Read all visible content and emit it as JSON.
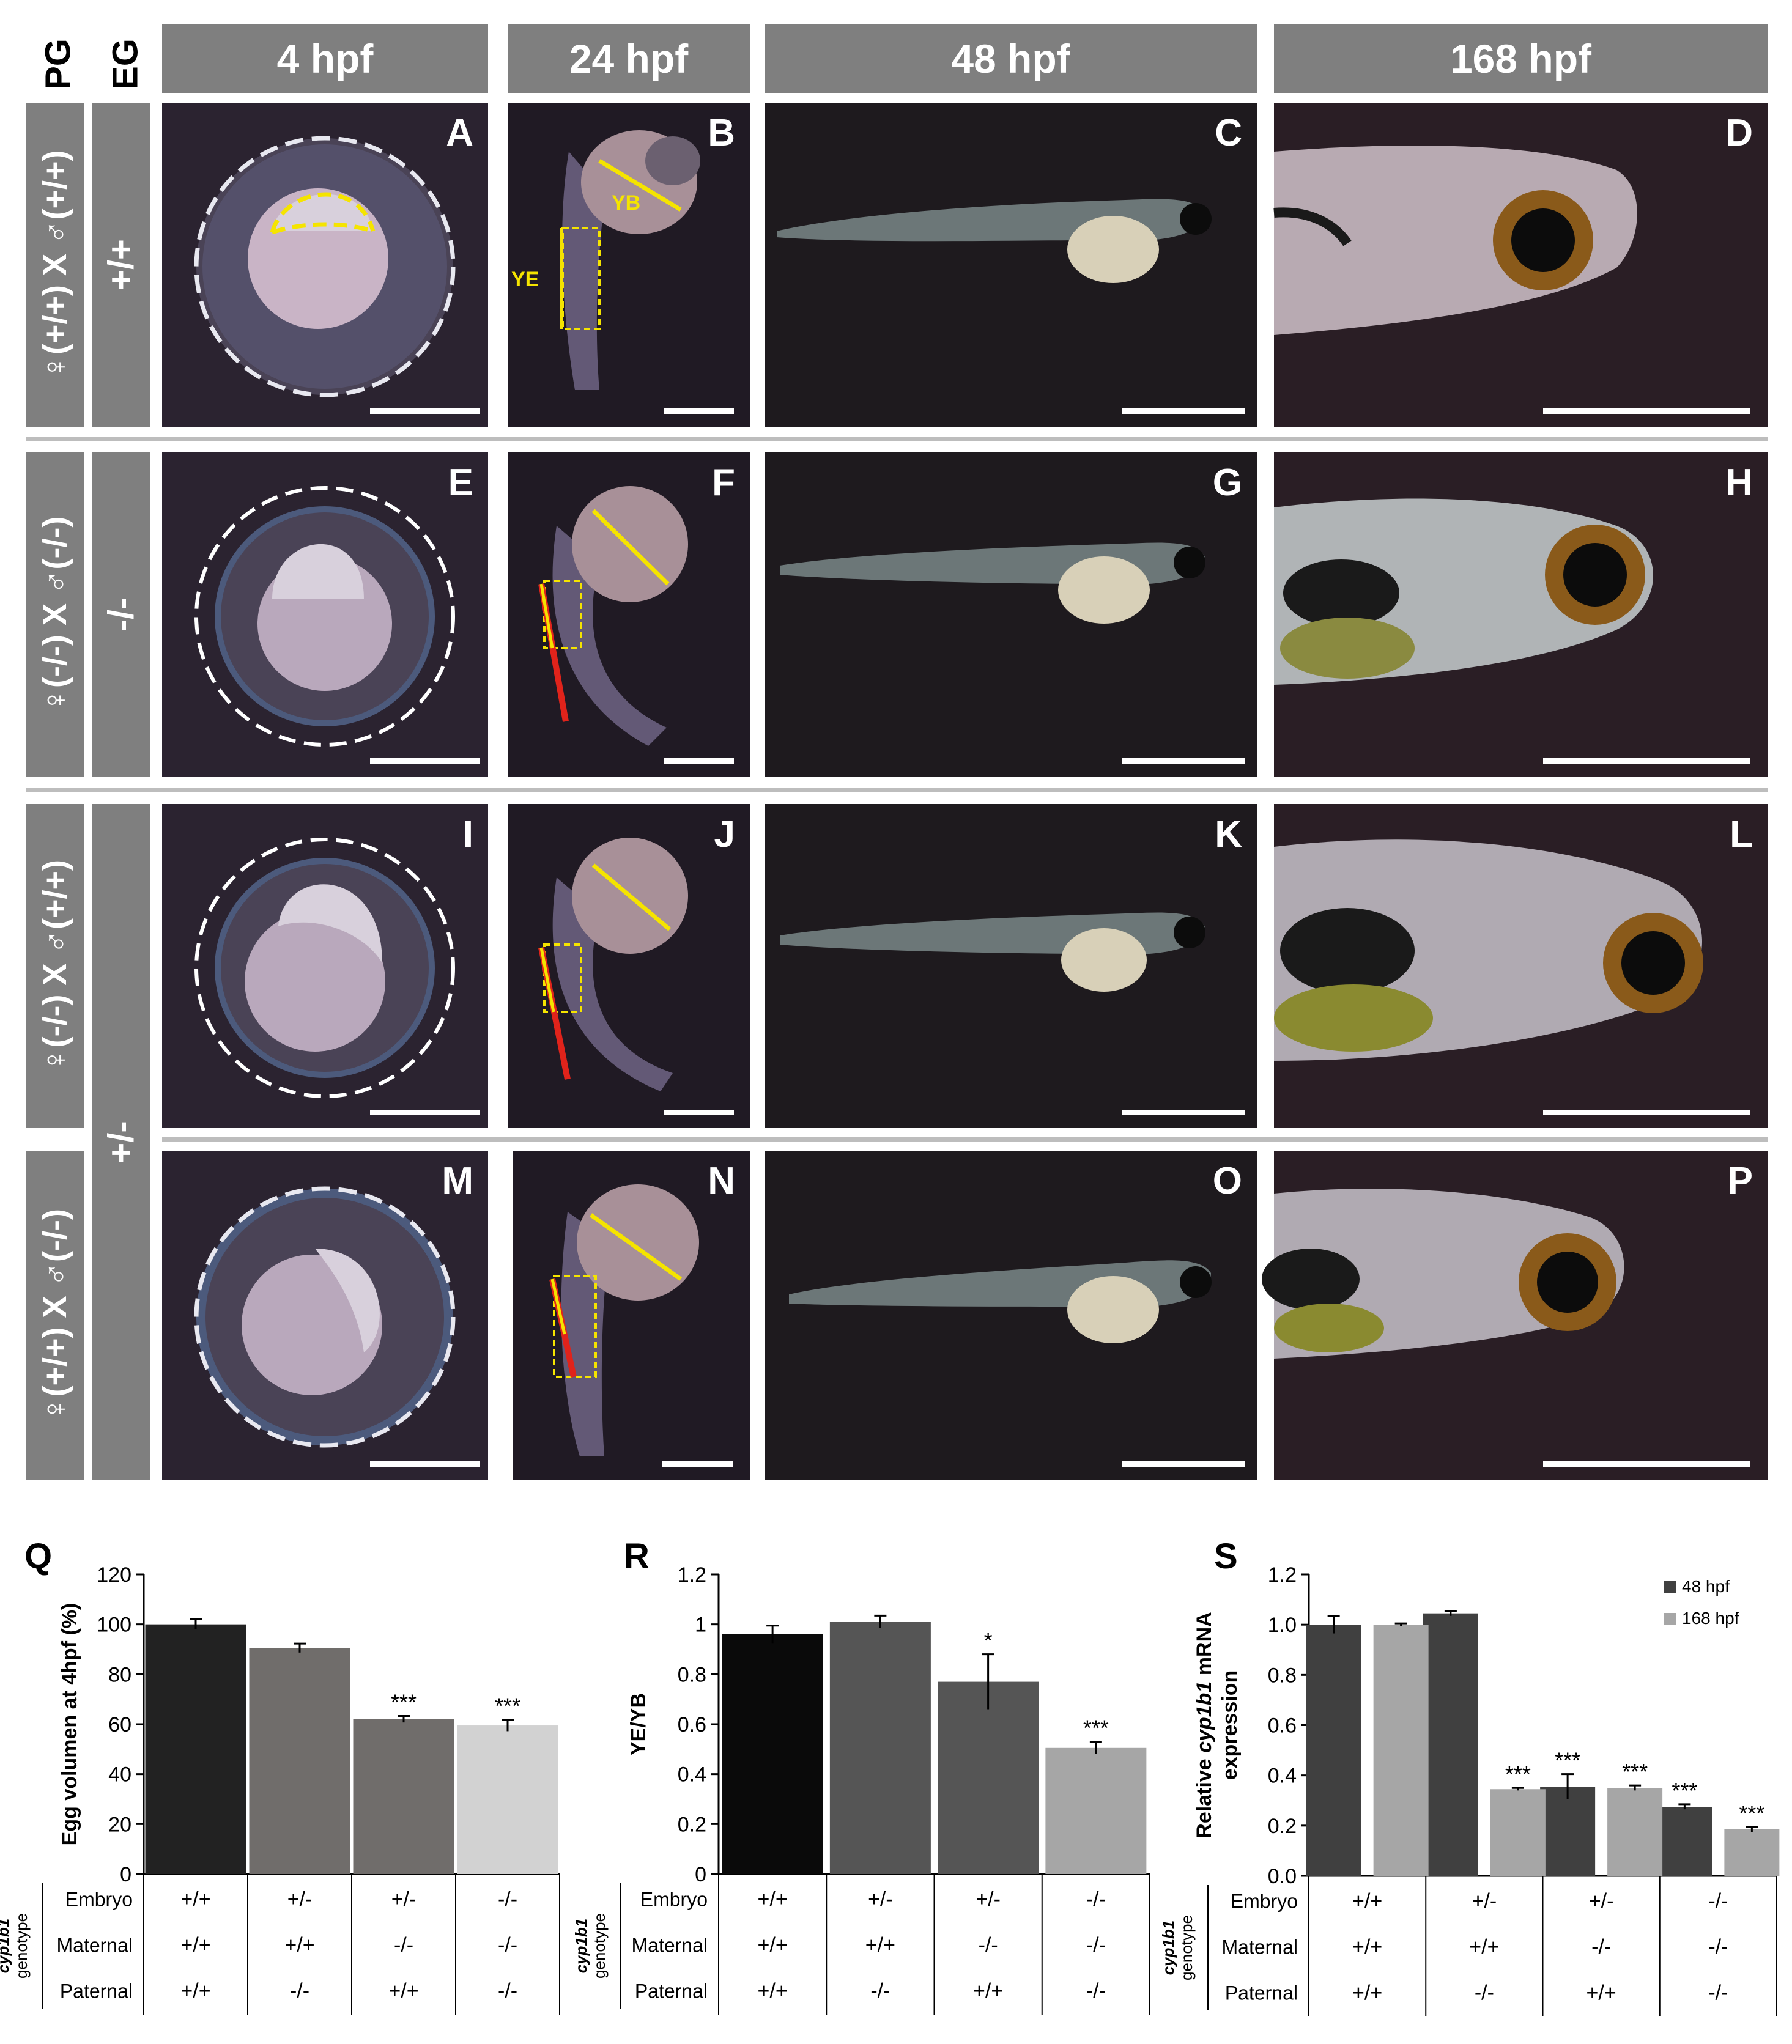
{
  "columns": [
    "4 hpf",
    "24 hpf",
    "48 hpf",
    "168 hpf"
  ],
  "axis_headers": {
    "pg": "PG",
    "eg": "EG"
  },
  "rows": [
    {
      "pg": "♀(+/+) X ♂(+/+)",
      "panels": [
        "A",
        "B",
        "C",
        "D"
      ]
    },
    {
      "pg": "♀(-/-) X ♂(-/-)",
      "panels": [
        "E",
        "F",
        "G",
        "H"
      ]
    },
    {
      "pg": "♀(-/-) X ♂(+/+)",
      "panels": [
        "I",
        "J",
        "K",
        "L"
      ]
    },
    {
      "pg": "♀(+/+) X ♂(-/-)",
      "panels": [
        "M",
        "N",
        "O",
        "P"
      ]
    }
  ],
  "eg_labels": [
    "+/+",
    "-/-",
    "+/-"
  ],
  "annotations": {
    "yb": "YB",
    "ye": "YE"
  },
  "figure_labels": [
    "Q",
    "R",
    "S"
  ],
  "genotype_table": {
    "group_title_italic": "cyp1b1",
    "group_title": "genotype",
    "row_labels": [
      "Embryo",
      "Maternal",
      "Paternal"
    ],
    "columns": [
      [
        "+/+",
        "+/+",
        "+/+"
      ],
      [
        "+/-",
        "+/+",
        "-/-"
      ],
      [
        "+/-",
        "-/-",
        "+/+"
      ],
      [
        "-/-",
        "-/-",
        "-/-"
      ]
    ]
  },
  "colors": {
    "header_gray": "#7f7f7f",
    "panel_bg": "#241e22",
    "annot_yellow": "#f5e400",
    "annot_red": "#e0231b"
  },
  "chart_data": [
    {
      "type": "bar",
      "label": "Q",
      "ylabel": "Egg volumen at 4hpf (%)",
      "ylim": [
        0,
        120
      ],
      "yticks": [
        "0",
        "20",
        "40",
        "60",
        "80",
        "100",
        "120"
      ],
      "values": [
        100,
        90.5,
        62,
        59.5
      ],
      "errors": [
        2,
        1.8,
        1.3,
        2.3
      ],
      "significance": [
        "",
        "",
        "***",
        "***"
      ],
      "colors": [
        "#222222",
        "#706d6b",
        "#706d6b",
        "#d2d2d2"
      ]
    },
    {
      "type": "bar",
      "label": "R",
      "ylabel": "YE/YB",
      "ylim": [
        0,
        1.2
      ],
      "yticks": [
        "0",
        "0.2",
        "0.4",
        "0.6",
        "0.8",
        "1",
        "1.2"
      ],
      "values": [
        0.96,
        1.01,
        0.77,
        0.505
      ],
      "errors": [
        0.035,
        0.025,
        0.11,
        0.025
      ],
      "significance": [
        "",
        "",
        "*",
        "***"
      ],
      "colors": [
        "#0a0a0a",
        "#555555",
        "#555555",
        "#a6a6a6"
      ]
    },
    {
      "type": "bar",
      "label": "S",
      "ylabel_parts": [
        "Relative ",
        "cyp1b1",
        " mRNA",
        "expression"
      ],
      "ylim": [
        0,
        1.2
      ],
      "yticks": [
        "0.0",
        "0.2",
        "0.4",
        "0.6",
        "0.8",
        "1.0",
        "1.2"
      ],
      "legend": "top-right",
      "series": [
        {
          "name": "48 hpf",
          "color": "#404040",
          "values": [
            1.0,
            1.045,
            0.355,
            0.275
          ],
          "errors": [
            0.035,
            0.01,
            0.05,
            0.01
          ],
          "significance": [
            "",
            "",
            "***",
            "***"
          ]
        },
        {
          "name": "168 hpf",
          "color": "#a6a6a6",
          "values": [
            1.0,
            0.345,
            0.35,
            0.185
          ],
          "errors": [
            0.005,
            0.005,
            0.01,
            0.01
          ],
          "significance": [
            "",
            "***",
            "***",
            "***"
          ]
        }
      ]
    }
  ]
}
